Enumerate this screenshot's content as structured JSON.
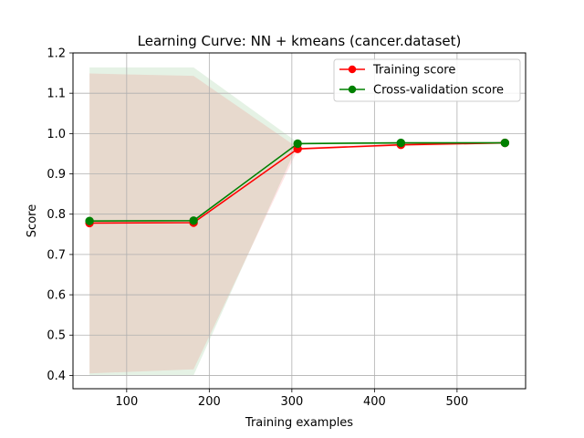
{
  "chart_data": {
    "type": "line",
    "title": "Learning Curve: NN + kmeans (cancer.dataset)",
    "xlabel": "Training examples",
    "ylabel": "Score",
    "xlim": [
      35,
      583
    ],
    "ylim": [
      0.367,
      1.2
    ],
    "xticks": [
      100,
      200,
      300,
      400,
      500
    ],
    "yticks": [
      0.4,
      0.5,
      0.6,
      0.7,
      0.8,
      0.9,
      1.0,
      1.1,
      1.2
    ],
    "xtick_labels": [
      "100",
      "200",
      "300",
      "400",
      "500"
    ],
    "ytick_labels": [
      "0.4",
      "0.5",
      "0.6",
      "0.7",
      "0.8",
      "0.9",
      "1.0",
      "1.1",
      "1.2"
    ],
    "grid": true,
    "legend_position": "top-right",
    "x": [
      55,
      181,
      307,
      432,
      558
    ],
    "series": [
      {
        "name": "Training score",
        "color": "#ff0000",
        "values": [
          0.778,
          0.779,
          0.962,
          0.972,
          0.977
        ],
        "band_lower": [
          0.405,
          0.415,
          0.96,
          0.968,
          0.974
        ],
        "band_upper": [
          1.149,
          1.143,
          0.965,
          0.976,
          0.98
        ],
        "band_color": "#ff0000"
      },
      {
        "name": "Cross-validation score",
        "color": "#008000",
        "values": [
          0.783,
          0.784,
          0.975,
          0.977,
          0.977
        ],
        "band_lower": [
          0.4,
          0.4,
          0.973,
          0.974,
          0.975
        ],
        "band_upper": [
          1.164,
          1.164,
          0.978,
          0.979,
          0.98
        ],
        "band_color": "#008000"
      }
    ]
  }
}
